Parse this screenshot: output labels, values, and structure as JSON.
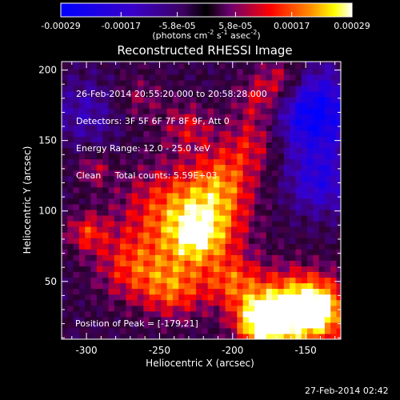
{
  "chart_data": {
    "type": "heatmap",
    "title": "Reconstructed RHESSI Image",
    "xlabel": "Heliocentric X (arcsec)",
    "ylabel": "Heliocentric Y (arcsec)",
    "xlim": [
      -317,
      -126
    ],
    "ylim": [
      9,
      206
    ],
    "x_ticks": [
      "-300",
      "-250",
      "-200",
      "-150"
    ],
    "x_tick_values": [
      -300,
      -250,
      -200,
      -150
    ],
    "y_ticks": [
      "50",
      "100",
      "150",
      "200"
    ],
    "y_tick_values": [
      50,
      100,
      150,
      200
    ],
    "colorbar": {
      "ticks": [
        "-0.00029",
        "-0.00017",
        "-5.8e-05",
        "5.8e-05",
        "0.00017",
        "0.00029"
      ],
      "tick_values": [
        -0.00029,
        -0.00017,
        -5.8e-05,
        5.8e-05,
        0.00017,
        0.00029
      ],
      "range": [
        -0.00029,
        0.00029
      ],
      "units_prefix": "(photons cm",
      "units_sup1": "-2",
      "units_mid": " s",
      "units_sup2": "-1",
      "units_mid2": " asec",
      "units_sup3": "-2",
      "units_suffix": ")"
    },
    "annotations": [
      "26-Feb-2014 20:55:20.000 to 20:58:28.000",
      "Detectors: 3F 5F 6F 7F 8F 9F, Att 0",
      "Energy Range: 12.0 - 25.0 keV",
      "Clean     Total counts: 5.59E+03"
    ],
    "peak_text": "Position of Peak = [-179,21]",
    "peak": [
      -179,
      21
    ],
    "colors": {
      "min": "#0000ff",
      "zero": "#000000",
      "max": "#ffffff",
      "mid_red": "#ff0000",
      "mid_yellow": "#ffff00"
    }
  },
  "footer": {
    "timestamp": "27-Feb-2014 02:42"
  }
}
